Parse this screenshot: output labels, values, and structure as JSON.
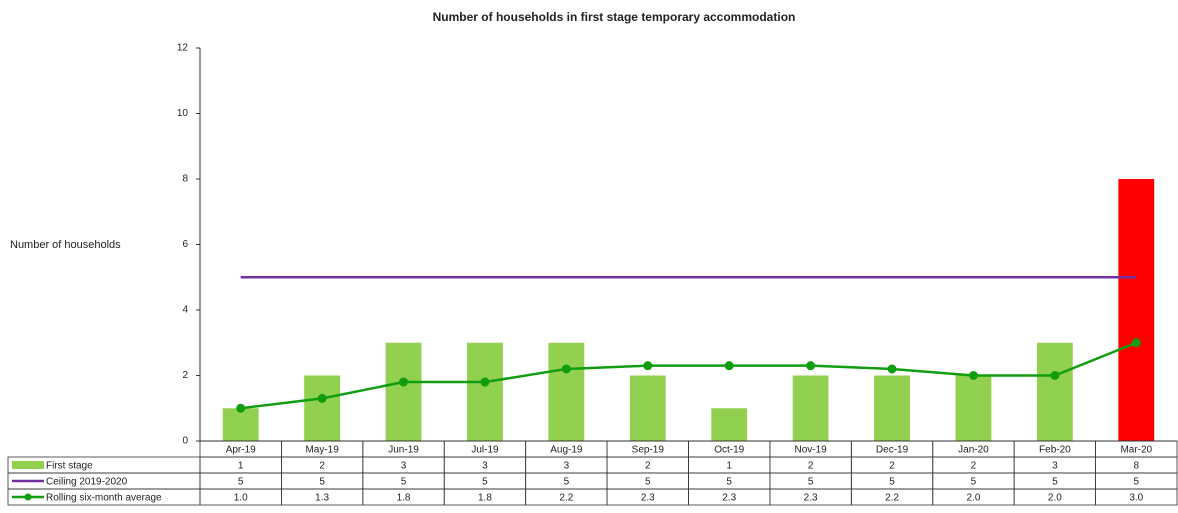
{
  "chart_data": {
    "type": "bar-line-table",
    "title": "Number of households in first stage temporary accommodation",
    "y_label": "Number of households",
    "categories": [
      "Apr-19",
      "May-19",
      "Jun-19",
      "Jul-19",
      "Aug-19",
      "Sep-19",
      "Oct-19",
      "Nov-19",
      "Dec-19",
      "Jan-20",
      "Feb-20",
      "Mar-20"
    ],
    "series": [
      {
        "name": "First stage",
        "kind": "bar",
        "color": "#92d050",
        "colors": [
          "#92d050",
          "#92d050",
          "#92d050",
          "#92d050",
          "#92d050",
          "#92d050",
          "#92d050",
          "#92d050",
          "#92d050",
          "#92d050",
          "#92d050",
          "#ff0000"
        ],
        "values": [
          1,
          2,
          3,
          3,
          3,
          2,
          1,
          2,
          2,
          2,
          3,
          8
        ]
      },
      {
        "name": "Ceiling 2019-2020",
        "kind": "line",
        "color": "#7030a0",
        "values": [
          5,
          5,
          5,
          5,
          5,
          5,
          5,
          5,
          5,
          5,
          5,
          5
        ]
      },
      {
        "name": "Rolling six-month average",
        "kind": "line-marker",
        "color": "#109d10",
        "values": [
          1.0,
          1.3,
          1.8,
          1.8,
          2.2,
          2.3,
          2.3,
          2.3,
          2.2,
          2.0,
          2.0,
          3.0
        ],
        "value_labels": [
          "1.0",
          "1.3",
          "1.8",
          "1.8",
          "2.2",
          "2.3",
          "2.3",
          "2.3",
          "2.2",
          "2.0",
          "2.0",
          "3.0"
        ]
      }
    ],
    "ylim": [
      0,
      12
    ],
    "yticks": [
      0,
      2,
      4,
      6,
      8,
      10,
      12
    ],
    "grid": false
  }
}
